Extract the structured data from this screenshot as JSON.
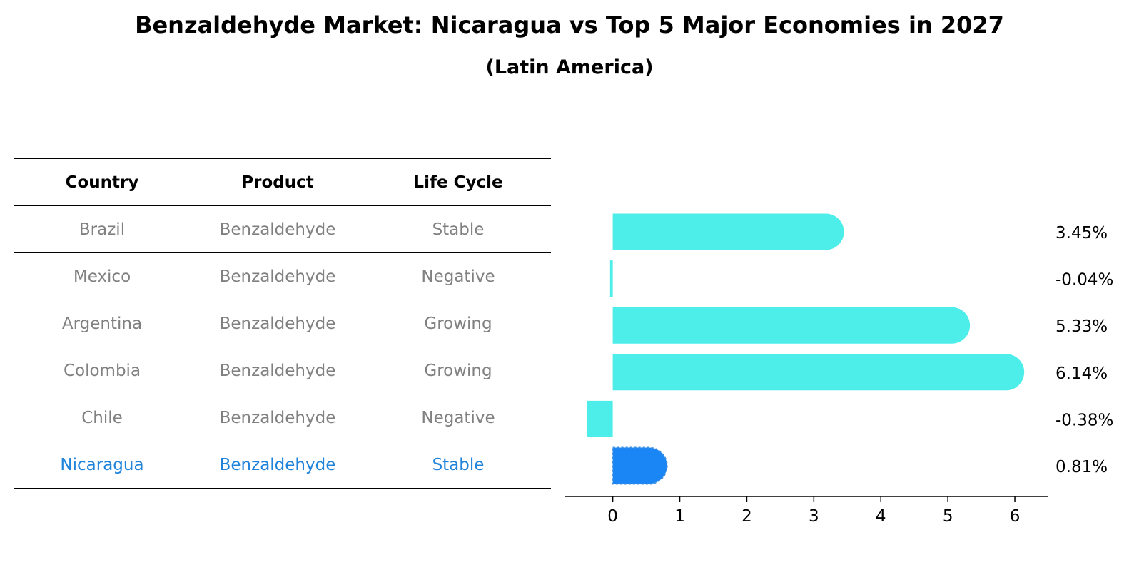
{
  "title": "Benzaldehyde Market: Nicaragua vs Top 5 Major Economies in 2027",
  "subtitle": "(Latin America)",
  "table": {
    "headers": [
      "Country",
      "Product",
      "Life Cycle"
    ],
    "rows": [
      [
        "Brazil",
        "Benzaldehyde",
        "Stable"
      ],
      [
        "Mexico",
        "Benzaldehyde",
        "Negative"
      ],
      [
        "Argentina",
        "Benzaldehyde",
        "Growing"
      ],
      [
        "Colombia",
        "Benzaldehyde",
        "Growing"
      ],
      [
        "Chile",
        "Benzaldehyde",
        "Negative"
      ],
      [
        "Nicaragua",
        "Benzaldehyde",
        "Stable"
      ]
    ],
    "highlight_row": 5
  },
  "colors": {
    "bar": "#4deeea",
    "highlight_bar": "#1a85f5",
    "highlight_text": "#1f83db",
    "muted_text": "#808080"
  },
  "chart_data": {
    "type": "bar",
    "orientation": "horizontal",
    "categories": [
      "Brazil",
      "Mexico",
      "Argentina",
      "Colombia",
      "Chile",
      "Nicaragua"
    ],
    "values": [
      3.45,
      -0.04,
      5.33,
      6.14,
      -0.38,
      0.81
    ],
    "value_labels": [
      "3.45%",
      "-0.04%",
      "5.33%",
      "6.14%",
      "-0.38%",
      "0.81%"
    ],
    "highlight_index": 5,
    "xlim": [
      -0.72,
      6.5
    ],
    "xticks": [
      0,
      1,
      2,
      3,
      4,
      5,
      6
    ],
    "grid": false
  }
}
